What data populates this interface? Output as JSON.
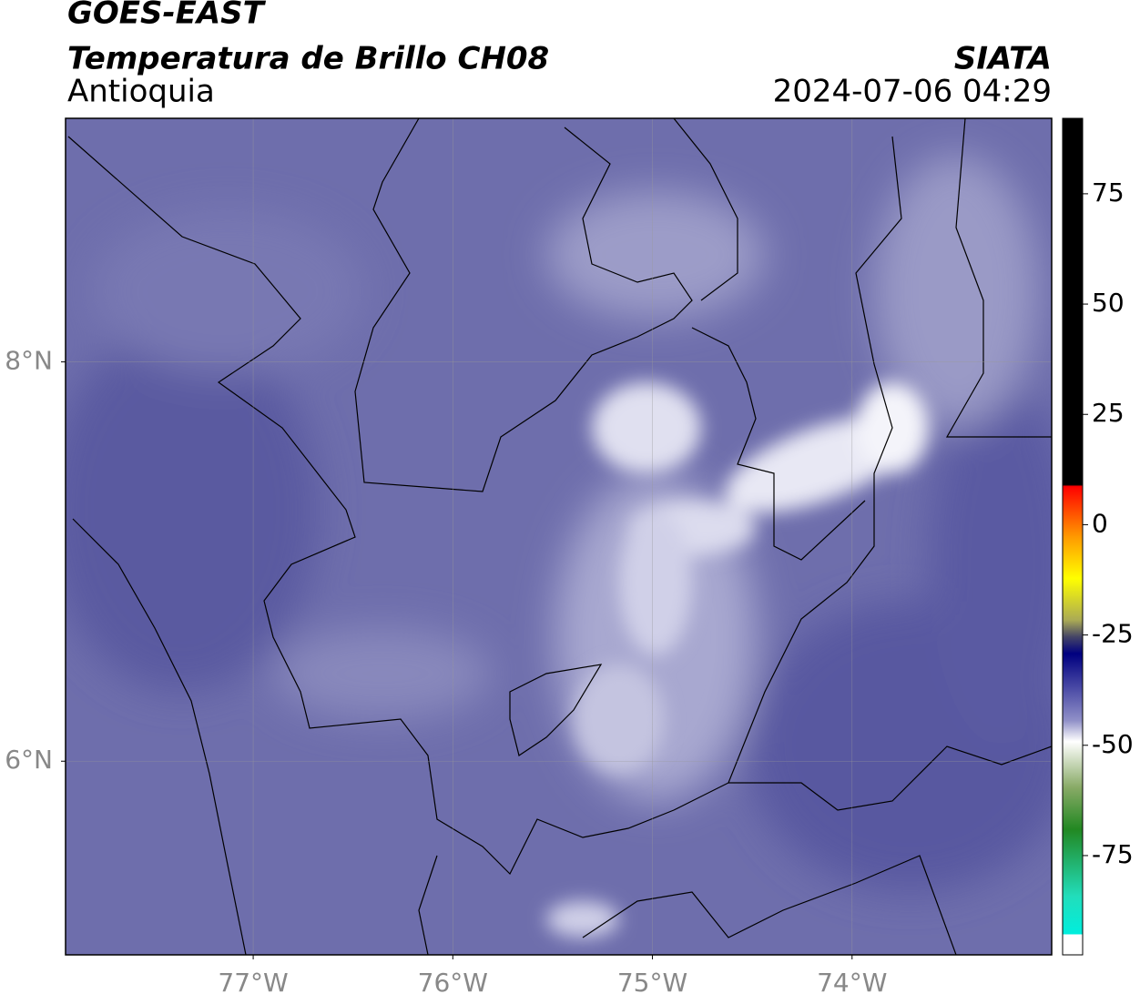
{
  "header": {
    "satellite": "GOES-EAST",
    "product": "Temperatura de Brillo CH08",
    "region": "Antioquia",
    "agency": "SIATA",
    "datetime": "2024-07-06 04:29"
  },
  "map": {
    "xlim": [
      -77.94,
      -73.0
    ],
    "ylim": [
      5.03,
      9.22
    ],
    "xticks": [
      {
        "value": -77,
        "label": "77°W"
      },
      {
        "value": -76,
        "label": "76°W"
      },
      {
        "value": -75,
        "label": "75°W"
      },
      {
        "value": -74,
        "label": "74°W"
      }
    ],
    "yticks": [
      {
        "value": 8,
        "label": "8°N"
      },
      {
        "value": 6,
        "label": "6°N"
      }
    ]
  },
  "colorbar": {
    "lim": [
      -97.5,
      92.1
    ],
    "ticks": [
      75,
      50,
      25,
      0,
      -25,
      -50,
      -75
    ]
  }
}
